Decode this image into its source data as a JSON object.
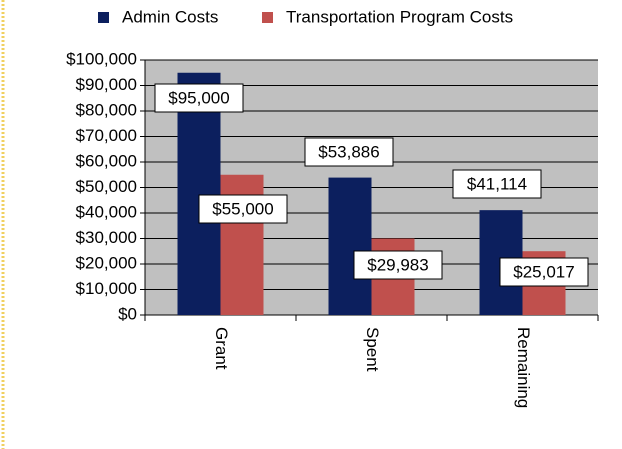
{
  "chart_data": {
    "type": "bar",
    "categories": [
      "Grant",
      "Spent",
      "Remaining"
    ],
    "series": [
      {
        "name": "Admin Costs",
        "color": "#0c1f5e",
        "values": [
          95000,
          53886,
          41114
        ],
        "value_labels": [
          "$95,000",
          "$53,886",
          "$41,114"
        ]
      },
      {
        "name": "Transportation Program Costs",
        "color": "#c0504d",
        "values": [
          55000,
          29983,
          25017
        ],
        "value_labels": [
          "$55,000",
          "$29,983",
          "$25,017"
        ]
      }
    ],
    "ylim": [
      0,
      100000
    ],
    "yticks": [
      {
        "value": 0,
        "label": "$0"
      },
      {
        "value": 10000,
        "label": "$10,000"
      },
      {
        "value": 20000,
        "label": "$20,000"
      },
      {
        "value": 30000,
        "label": "$30,000"
      },
      {
        "value": 40000,
        "label": "$40,000"
      },
      {
        "value": 50000,
        "label": "$50,000"
      },
      {
        "value": 60000,
        "label": "$60,000"
      },
      {
        "value": 70000,
        "label": "$70,000"
      },
      {
        "value": 80000,
        "label": "$80,000"
      },
      {
        "value": 90000,
        "label": "$90,000"
      },
      {
        "value": 100000,
        "label": "$100,000"
      }
    ],
    "grid": true,
    "legend": "top"
  }
}
